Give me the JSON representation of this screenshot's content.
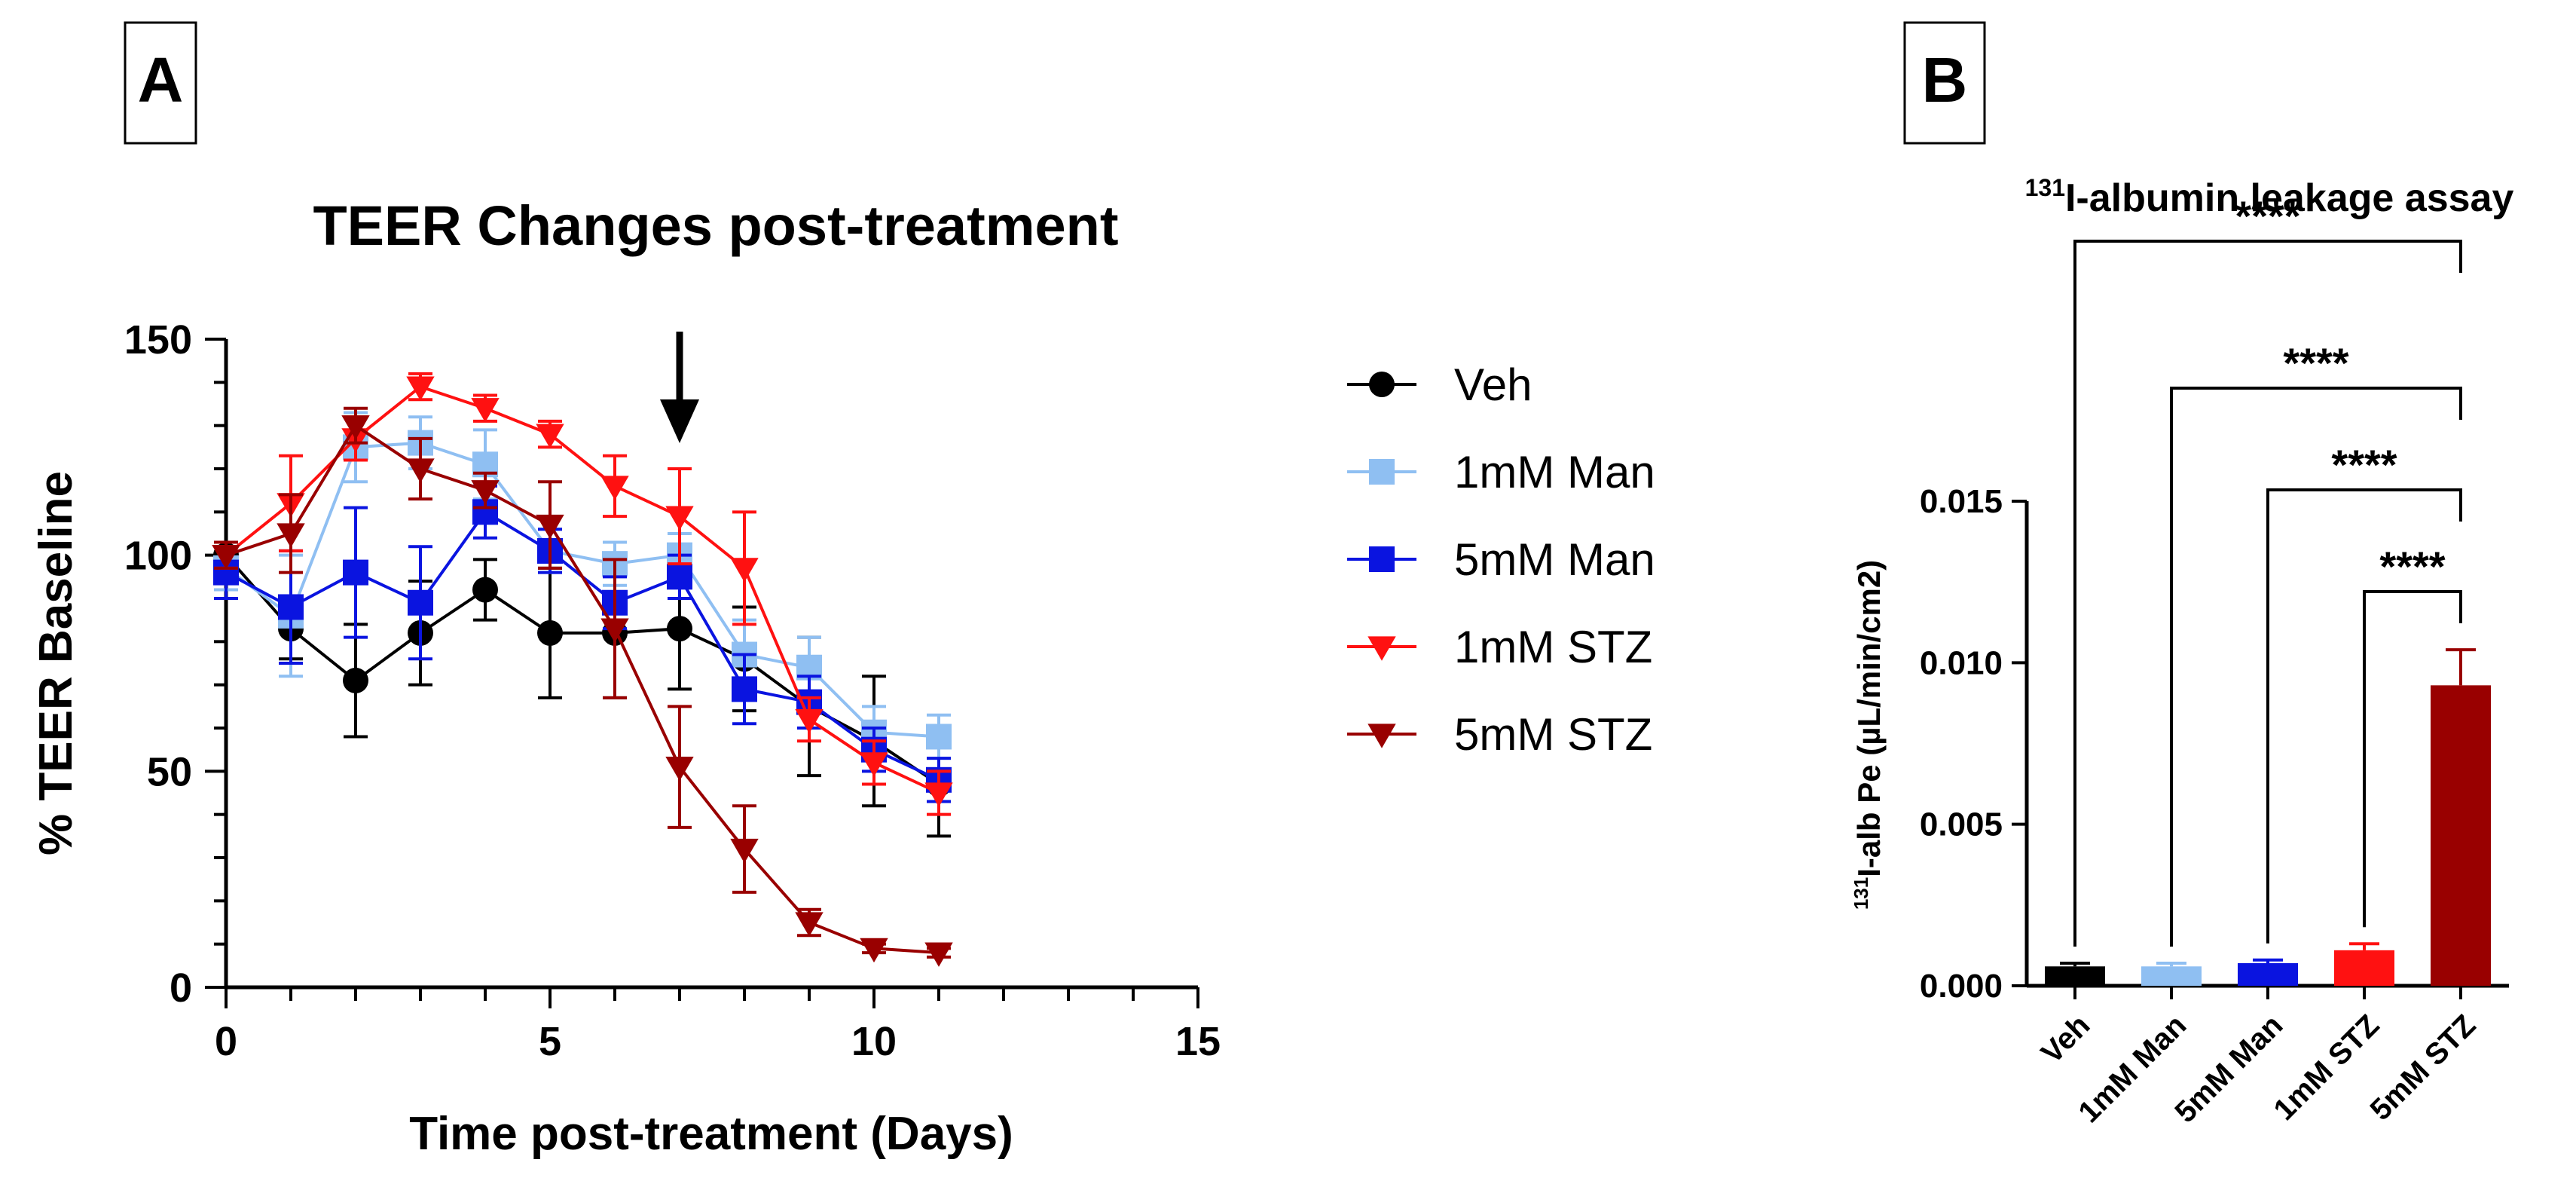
{
  "panels": {
    "a_label": "A",
    "b_label": "B"
  },
  "colors": {
    "veh": "#000000",
    "man1": "#8fbff2",
    "man5": "#0a14e0",
    "stz1": "#ff1111",
    "stz5": "#990000"
  },
  "chart_data": [
    {
      "type": "line",
      "title": "TEER Changes post-treatment",
      "xlabel": "Time post-treatment (Days)",
      "ylabel": "% TEER Baseline",
      "xlim": [
        0,
        15
      ],
      "ylim": [
        0,
        150
      ],
      "xticks": [
        "0",
        "5",
        "10",
        "15"
      ],
      "yticks": [
        "0",
        "50",
        "100",
        "150"
      ],
      "annotation": "arrow at day 7",
      "arrow_day": 7,
      "x": [
        0,
        1,
        2,
        3,
        4,
        5,
        6,
        7,
        8,
        9,
        10,
        11
      ],
      "series": [
        {
          "name": "Veh",
          "key": "veh",
          "marker": "circle",
          "values": [
            100,
            83,
            71,
            82,
            92,
            82,
            82,
            83,
            76,
            65,
            57,
            47
          ],
          "errors": [
            3,
            7,
            13,
            12,
            7,
            15,
            15,
            14,
            12,
            16,
            15,
            12
          ]
        },
        {
          "name": "1mM Man",
          "key": "man1",
          "marker": "square",
          "values": [
            97,
            86,
            125,
            126,
            121,
            101,
            98,
            100,
            77,
            74,
            59,
            58
          ],
          "errors": [
            5,
            14,
            8,
            6,
            8,
            5,
            5,
            5,
            8,
            7,
            6,
            5
          ]
        },
        {
          "name": "5mM Man",
          "key": "man5",
          "marker": "square",
          "values": [
            96,
            88,
            96,
            89,
            110,
            101,
            89,
            95,
            69,
            66,
            55,
            48
          ],
          "errors": [
            6,
            13,
            15,
            13,
            6,
            5,
            6,
            5,
            8,
            6,
            5,
            5
          ]
        },
        {
          "name": "1mM STZ",
          "key": "stz1",
          "marker": "triangle-down",
          "values": [
            100,
            112,
            127,
            139,
            134,
            128,
            116,
            109,
            97,
            62,
            52,
            45
          ],
          "errors": [
            3,
            11,
            5,
            3,
            3,
            3,
            7,
            11,
            13,
            5,
            5,
            5
          ]
        },
        {
          "name": "5mM STZ",
          "key": "stz5",
          "marker": "triangle-down",
          "values": [
            100,
            105,
            130,
            120,
            115,
            107,
            83,
            51,
            32,
            15,
            9,
            8
          ],
          "errors": [
            3,
            9,
            4,
            7,
            4,
            10,
            16,
            14,
            10,
            3,
            1,
            1
          ]
        }
      ]
    },
    {
      "type": "bar",
      "title_sup": "131",
      "title_rest": "I-albumin leakage assay",
      "ylabel_sup": "131",
      "ylabel_rest": "I-alb Pe (µL/min/cm2)",
      "ylim": [
        0,
        0.015
      ],
      "yticks": [
        "0.000",
        "0.005",
        "0.010",
        "0.015"
      ],
      "categories": [
        "Veh",
        "1mM Man",
        "5mM Man",
        "1mM STZ",
        "5mM STZ"
      ],
      "keys": [
        "veh",
        "man1",
        "man5",
        "stz1",
        "stz5"
      ],
      "values": [
        0.0006,
        0.0006,
        0.0007,
        0.0011,
        0.0093
      ],
      "errors": [
        0.0001,
        0.0001,
        0.0001,
        0.0002,
        0.0011
      ],
      "significance": [
        {
          "from": "Veh",
          "to": "5mM STZ",
          "label": "****"
        },
        {
          "from": "1mM Man",
          "to": "5mM STZ",
          "label": "****"
        },
        {
          "from": "5mM Man",
          "to": "5mM STZ",
          "label": "****"
        },
        {
          "from": "1mM STZ",
          "to": "5mM STZ",
          "label": "****"
        }
      ]
    }
  ]
}
